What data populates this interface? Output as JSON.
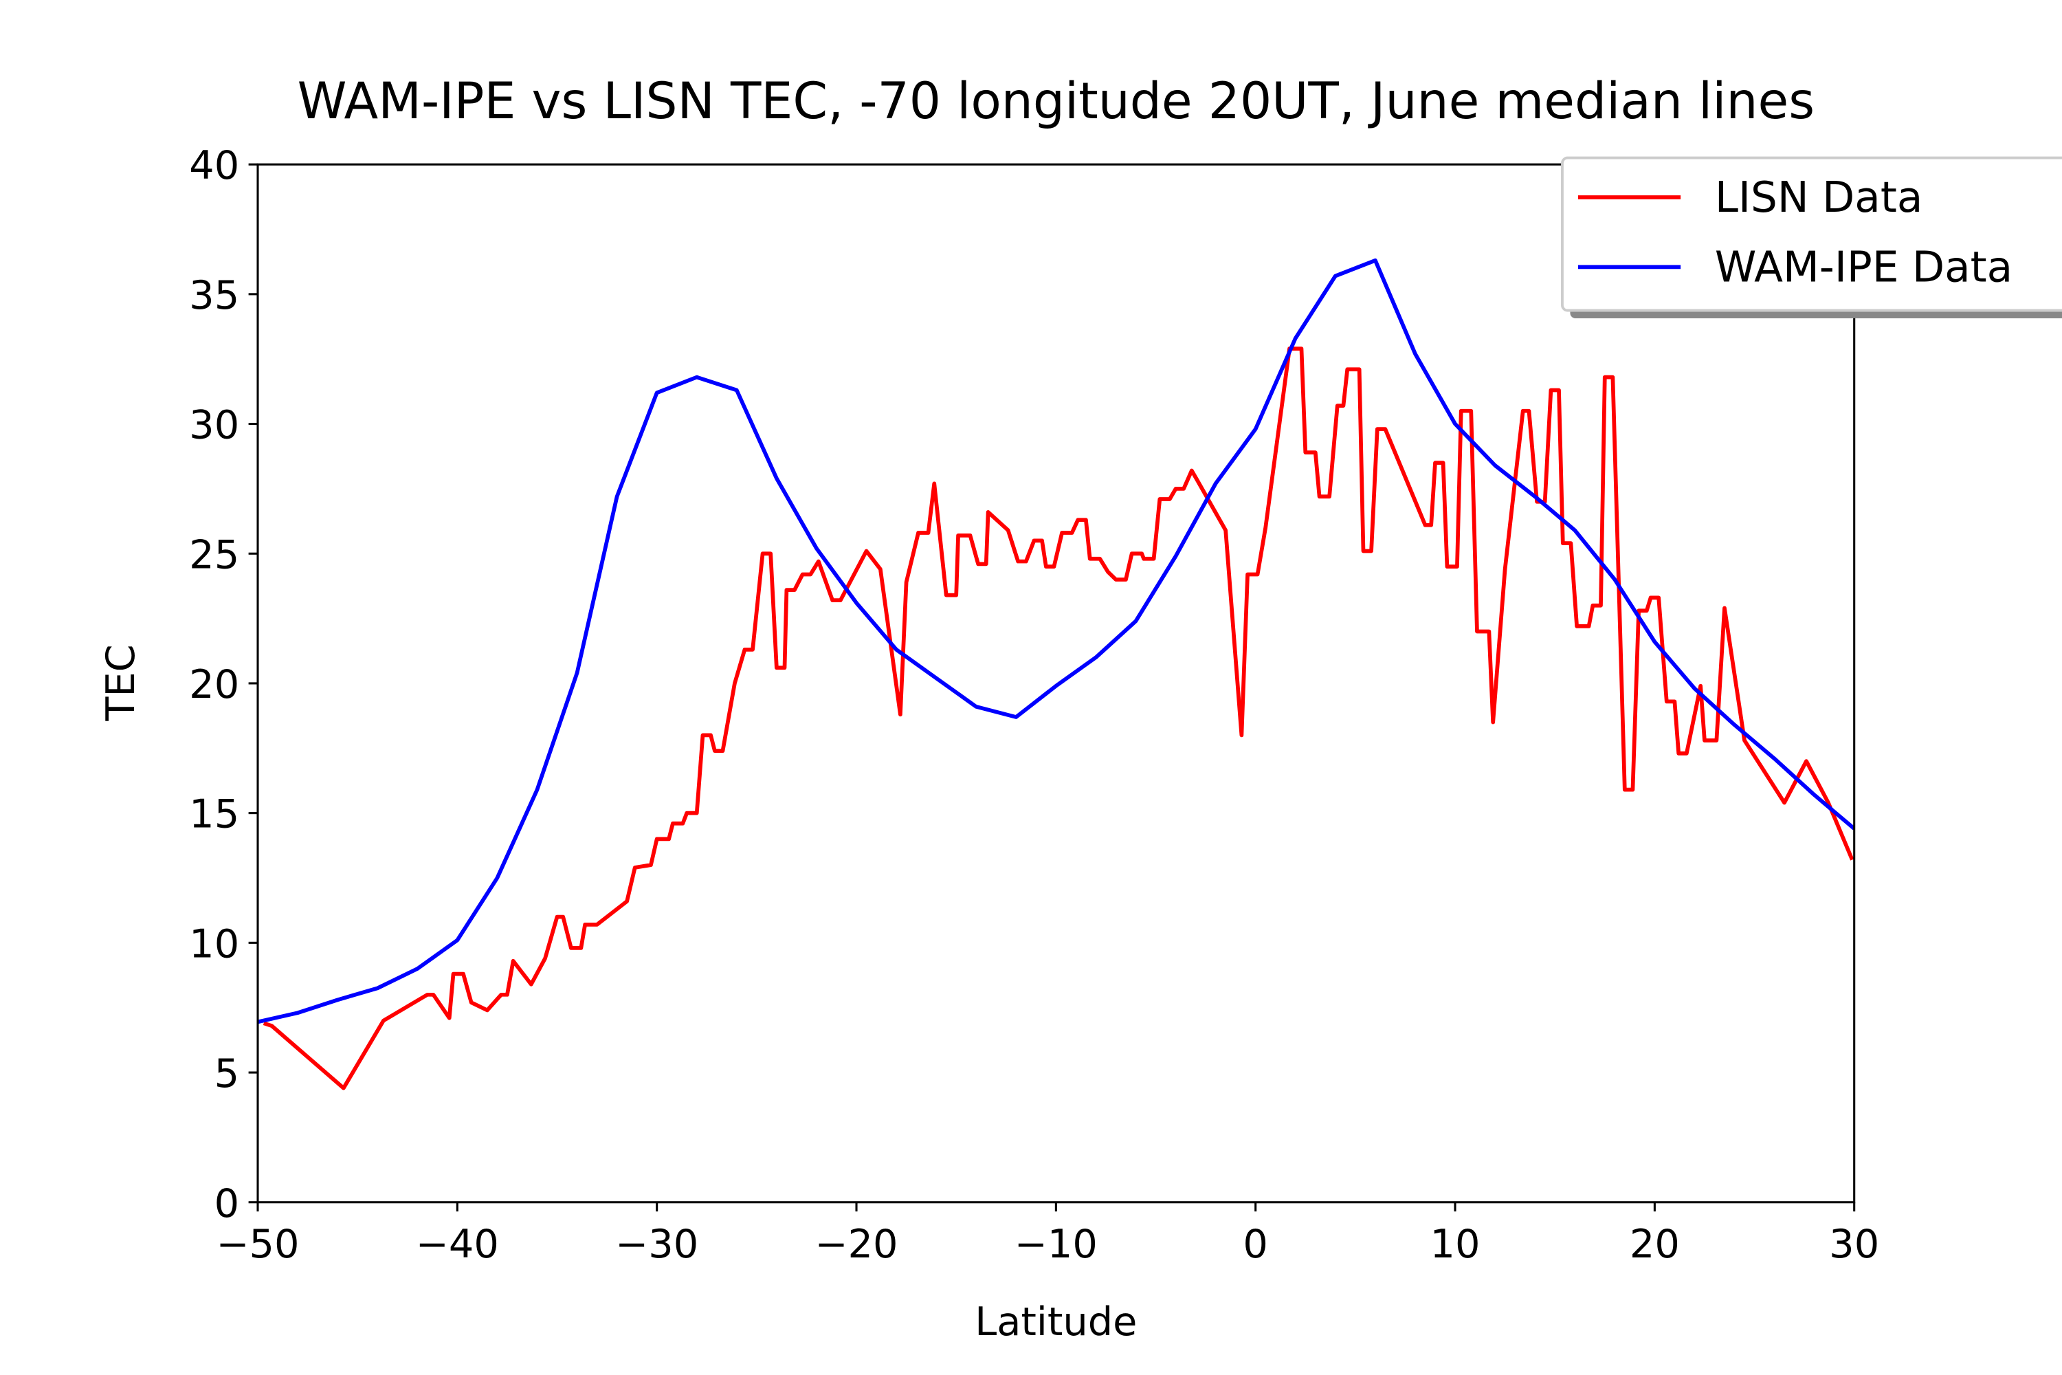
{
  "chart_data": {
    "type": "line",
    "title": "WAM-IPE vs LISN TEC, -70 longitude 20UT, June median lines",
    "x_label": "Latitude",
    "y_label": "TEC",
    "xlim": [
      -50,
      30
    ],
    "ylim": [
      0,
      40
    ],
    "xticks": [
      {
        "value": -50,
        "label": "−50"
      },
      {
        "value": -40,
        "label": "−40"
      },
      {
        "value": -30,
        "label": "−30"
      },
      {
        "value": -20,
        "label": "−20"
      },
      {
        "value": -10,
        "label": "−10"
      },
      0,
      10,
      20,
      30
    ],
    "yticks": [
      0,
      5,
      10,
      15,
      20,
      25,
      30,
      35,
      40
    ],
    "grid": false,
    "legend": "upper right",
    "series": [
      {
        "name": "LISN Data",
        "color": "#ff0000",
        "x": [
          -49.7,
          -49.3,
          -45.7,
          -43.7,
          -41.5,
          -41.2,
          -40.4,
          -40.2,
          -39.7,
          -39.3,
          -38.5,
          -37.8,
          -37.5,
          -37.2,
          -36.3,
          -35.6,
          -35.0,
          -34.7,
          -34.3,
          -33.8,
          -33.6,
          -33.0,
          -31.5,
          -31.1,
          -30.3,
          -30.0,
          -29.4,
          -29.2,
          -28.7,
          -28.5,
          -28.0,
          -27.7,
          -27.3,
          -27.1,
          -26.7,
          -26.1,
          -25.6,
          -25.2,
          -24.7,
          -24.3,
          -24.0,
          -23.6,
          -23.5,
          -23.1,
          -22.7,
          -22.3,
          -21.9,
          -21.2,
          -20.8,
          -19.5,
          -18.8,
          -17.8,
          -17.5,
          -16.9,
          -16.4,
          -16.1,
          -15.5,
          -15.0,
          -14.9,
          -14.3,
          -13.9,
          -13.5,
          -13.4,
          -12.4,
          -11.9,
          -11.5,
          -11.1,
          -10.7,
          -10.5,
          -10.1,
          -9.7,
          -9.2,
          -8.9,
          -8.5,
          -8.3,
          -7.8,
          -7.4,
          -7.0,
          -6.5,
          -6.2,
          -5.7,
          -5.6,
          -5.1,
          -4.8,
          -4.3,
          -4.0,
          -3.6,
          -3.2,
          -2.9,
          -1.5,
          -0.7,
          -0.4,
          0.1,
          0.5,
          1.7,
          2.3,
          2.5,
          3.0,
          3.2,
          3.7,
          4.1,
          4.4,
          4.6,
          5.2,
          5.4,
          5.8,
          6.1,
          6.5,
          8.5,
          8.8,
          9.0,
          9.4,
          9.6,
          10.1,
          10.3,
          10.8,
          11.1,
          11.7,
          11.9,
          12.5,
          13.4,
          13.7,
          14.1,
          14.5,
          14.8,
          15.2,
          15.4,
          15.8,
          16.1,
          16.7,
          16.9,
          17.3,
          17.5,
          17.9,
          18.5,
          18.9,
          19.2,
          19.6,
          19.8,
          20.2,
          20.6,
          21.0,
          21.2,
          21.6,
          22.3,
          22.5,
          23.1,
          23.5,
          24.5,
          26.5,
          27.6,
          28.7,
          29.9
        ],
        "values": [
          6.9,
          6.8,
          4.4,
          7.0,
          8.0,
          8.0,
          7.1,
          8.8,
          8.8,
          7.7,
          7.4,
          8.0,
          8.0,
          9.3,
          8.4,
          9.4,
          11.0,
          11.0,
          9.8,
          9.8,
          10.7,
          10.7,
          11.6,
          12.9,
          13.0,
          14.0,
          14.0,
          14.6,
          14.6,
          15.0,
          15.0,
          18.0,
          18.0,
          17.4,
          17.4,
          20.0,
          21.3,
          21.3,
          25.0,
          25.0,
          20.6,
          20.6,
          23.6,
          23.6,
          24.2,
          24.2,
          24.7,
          23.2,
          23.2,
          25.1,
          24.4,
          18.8,
          23.9,
          25.8,
          25.8,
          27.7,
          23.4,
          23.4,
          25.7,
          25.7,
          24.6,
          24.6,
          26.6,
          25.9,
          24.7,
          24.7,
          25.5,
          25.5,
          24.5,
          24.5,
          25.8,
          25.8,
          26.3,
          26.3,
          24.8,
          24.8,
          24.3,
          24.0,
          24.0,
          25.0,
          25.0,
          24.8,
          24.8,
          27.1,
          27.1,
          27.5,
          27.5,
          28.2,
          27.8,
          25.9,
          18.0,
          24.2,
          24.2,
          26.0,
          32.9,
          32.9,
          28.9,
          28.9,
          27.2,
          27.2,
          30.7,
          30.7,
          32.1,
          32.1,
          25.1,
          25.1,
          29.8,
          29.8,
          26.1,
          26.1,
          28.5,
          28.5,
          24.5,
          24.5,
          30.5,
          30.5,
          22.0,
          22.0,
          18.5,
          24.4,
          30.5,
          30.5,
          27.0,
          27.0,
          31.3,
          31.3,
          25.4,
          25.4,
          22.2,
          22.2,
          23.0,
          23.0,
          31.8,
          31.8,
          15.9,
          15.9,
          22.8,
          22.8,
          23.3,
          23.3,
          19.3,
          19.3,
          17.3,
          17.3,
          19.9,
          17.8,
          17.8,
          22.9,
          17.8,
          15.4,
          17.0,
          15.4,
          13.2
        ]
      },
      {
        "name": "WAM-IPE Data",
        "color": "#0000ff",
        "x": [
          -50,
          -48,
          -46,
          -44,
          -42,
          -40,
          -38,
          -36,
          -34,
          -32,
          -30,
          -28,
          -26,
          -24,
          -22,
          -20,
          -18,
          -16,
          -14,
          -12,
          -10,
          -8,
          -6,
          -4,
          -2,
          0,
          2,
          4,
          6,
          8,
          10,
          12,
          14,
          16,
          18,
          20,
          22,
          24,
          26,
          28,
          30
        ],
        "values": [
          6.95,
          7.3,
          7.8,
          8.25,
          9.0,
          10.1,
          12.5,
          15.9,
          20.4,
          27.2,
          31.2,
          31.8,
          31.3,
          27.9,
          25.2,
          23.1,
          21.3,
          20.2,
          19.1,
          18.7,
          19.9,
          21.0,
          22.4,
          24.9,
          27.7,
          29.8,
          33.3,
          35.7,
          36.3,
          32.7,
          30.0,
          28.4,
          27.2,
          25.9,
          24.0,
          21.6,
          19.8,
          18.4,
          17.1,
          15.7,
          14.4
        ]
      }
    ]
  }
}
